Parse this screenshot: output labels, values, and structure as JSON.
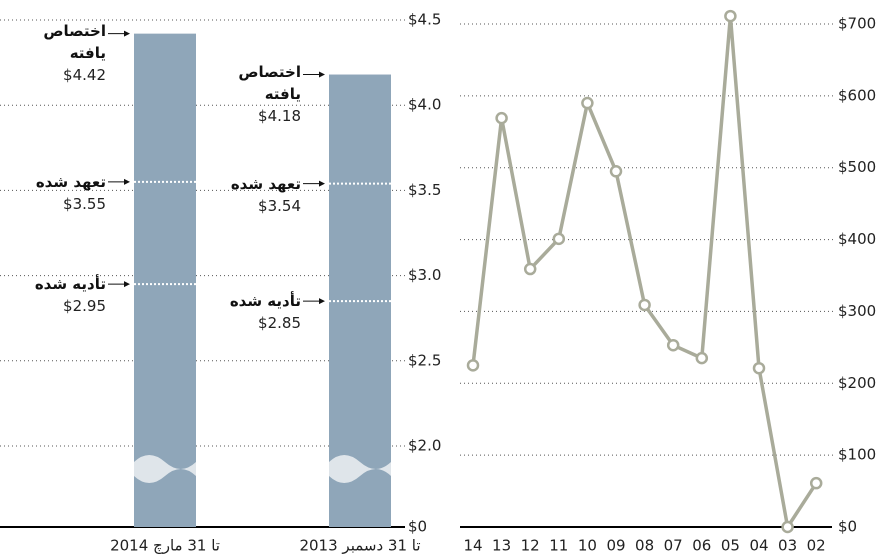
{
  "chart_data": [
    {
      "type": "bar",
      "categories": [
        "تا 31 مارچ 2014",
        "تا 31 دسمبر 2013"
      ],
      "series": [
        {
          "name": "اختصاص یافته",
          "values": [
            4.42,
            4.18
          ],
          "value_labels": [
            "$4.42",
            "$4.18"
          ]
        },
        {
          "name": "تعهد شده",
          "values": [
            3.55,
            3.54
          ],
          "value_labels": [
            "$3.55",
            "$3.54"
          ]
        },
        {
          "name": "تأدیه شده",
          "values": [
            2.95,
            2.85
          ],
          "value_labels": [
            "$2.95",
            "$2.85"
          ]
        }
      ],
      "color": "#8fa6b9",
      "yticks": [
        {
          "value": 0,
          "label": "$0"
        },
        {
          "value": 2.0,
          "label": "$2.0"
        },
        {
          "value": 2.5,
          "label": "$2.5"
        },
        {
          "value": 3.0,
          "label": "$3.0"
        },
        {
          "value": 3.5,
          "label": "$3.5"
        },
        {
          "value": 4.0,
          "label": "$4.0"
        },
        {
          "value": 4.5,
          "label": "$4.5"
        }
      ],
      "grid": true
    },
    {
      "type": "line",
      "categories": [
        "14",
        "13",
        "12",
        "11",
        "10",
        "09",
        "08",
        "07",
        "06",
        "05",
        "04",
        "03",
        "02"
      ],
      "values": [
        225,
        569,
        359,
        401,
        590,
        495,
        309,
        253,
        235,
        711,
        221,
        0,
        61
      ],
      "color": "#a9ab9a",
      "ylim": [
        0,
        720
      ],
      "yticks": [
        {
          "value": 0,
          "label": "$0"
        },
        {
          "value": 100,
          "label": "$100"
        },
        {
          "value": 200,
          "label": "$200"
        },
        {
          "value": 300,
          "label": "$300"
        },
        {
          "value": 400,
          "label": "$400"
        },
        {
          "value": 500,
          "label": "$500"
        },
        {
          "value": 600,
          "label": "$600"
        },
        {
          "value": 700,
          "label": "$700"
        }
      ],
      "grid": true
    }
  ]
}
